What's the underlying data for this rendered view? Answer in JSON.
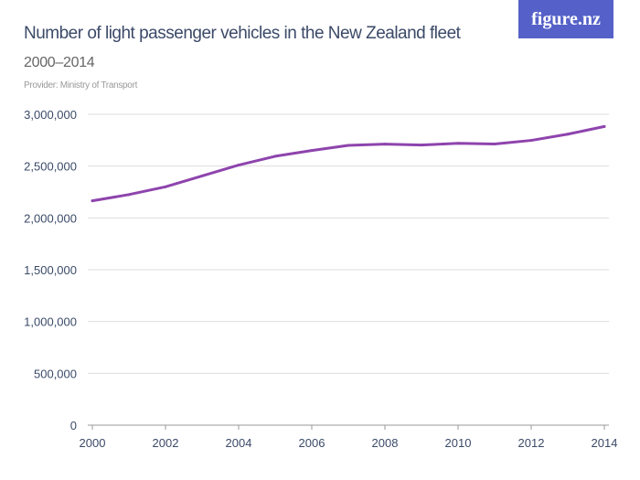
{
  "brand": {
    "logo_text": "figure.nz",
    "color": "#5561c8"
  },
  "chart_data": {
    "type": "line",
    "title": "Number of light passenger vehicles in the New Zealand fleet",
    "subtitle": "2000–2014",
    "provider": "Provider: Ministry of Transport",
    "x": [
      2000,
      2001,
      2002,
      2003,
      2004,
      2005,
      2006,
      2007,
      2008,
      2009,
      2010,
      2011,
      2012,
      2013,
      2014
    ],
    "series": [
      {
        "values": [
          2165000,
          2225000,
          2300000,
          2405000,
          2510000,
          2595000,
          2650000,
          2700000,
          2712000,
          2703000,
          2720000,
          2713000,
          2748000,
          2808000,
          2882000
        ],
        "color": "#8e44ad"
      }
    ],
    "ylim": [
      0,
      3000000
    ],
    "xlim": [
      2000,
      2014
    ],
    "yticks": [
      0,
      500000,
      1000000,
      1500000,
      2000000,
      2500000,
      3000000
    ],
    "ytick_labels": [
      "0",
      "500,000",
      "1,000,000",
      "1,500,000",
      "2,000,000",
      "2,500,000",
      "3,000,000"
    ],
    "xticks": [
      2000,
      2002,
      2004,
      2006,
      2008,
      2010,
      2012,
      2014
    ],
    "xtick_labels": [
      "2000",
      "2002",
      "2004",
      "2006",
      "2008",
      "2010",
      "2012",
      "2014"
    ],
    "grid": true,
    "xlabel": "",
    "ylabel": ""
  }
}
